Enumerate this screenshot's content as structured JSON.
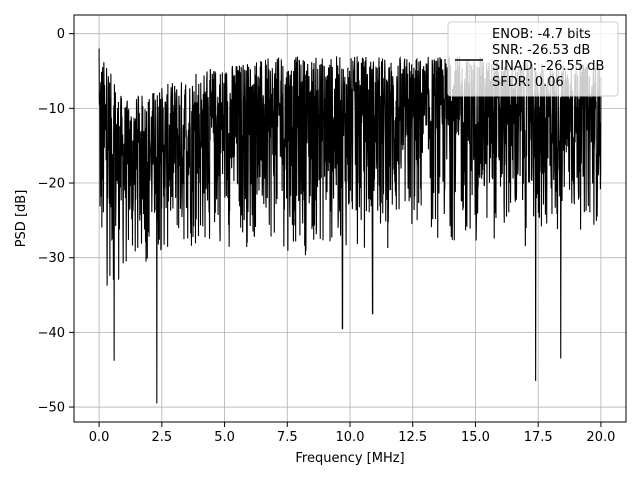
{
  "chart_data": {
    "type": "line",
    "xlabel": "Frequency [MHz]",
    "ylabel": "PSD [dB]",
    "xlim": [
      -1.0,
      21.0
    ],
    "ylim": [
      -52.0,
      2.5
    ],
    "xticks": [
      0.0,
      2.5,
      5.0,
      7.5,
      10.0,
      12.5,
      15.0,
      17.5,
      20.0
    ],
    "xtick_labels": [
      "0.0",
      "2.5",
      "5.0",
      "7.5",
      "10.0",
      "12.5",
      "15.0",
      "17.5",
      "20.0"
    ],
    "yticks": [
      0,
      -10,
      -20,
      -30,
      -40,
      -50
    ],
    "ytick_labels": [
      "0",
      "−10",
      "−20",
      "−30",
      "−40",
      "−50"
    ],
    "grid": true,
    "legend_placement": "upper-right",
    "legend_lines": [
      "ENOB: -4.7 bits",
      "SNR: -26.53 dB",
      "SINAD: -26.55 dB",
      "SFDR: 0.06"
    ],
    "series": [
      {
        "color": "#000000",
        "x_range": [
          0.0,
          20.0
        ],
        "n_points": 2000,
        "start_value": -2,
        "envelope_upper": {
          "x": [
            0,
            1,
            2.5,
            5,
            7.5,
            10,
            12.5,
            15,
            17.5,
            20
          ],
          "y": [
            -2,
            -9,
            -7,
            -4,
            -3,
            -3,
            -3,
            -3,
            -4,
            -4
          ]
        },
        "envelope_lower": {
          "x": [
            0,
            1,
            2.5,
            5,
            7.5,
            10,
            12.5,
            15,
            17.5,
            20
          ],
          "y": [
            -42,
            -39,
            -36,
            -34,
            -35,
            -36,
            -34,
            -33,
            -34,
            -30
          ]
        },
        "deep_notches": [
          {
            "x": 0.6,
            "y": -43.8
          },
          {
            "x": 2.3,
            "y": -49.5
          },
          {
            "x": 9.7,
            "y": -39.5
          },
          {
            "x": 10.9,
            "y": -37.5
          },
          {
            "x": 17.4,
            "y": -46.5
          },
          {
            "x": 18.4,
            "y": -43.5
          }
        ]
      }
    ]
  }
}
